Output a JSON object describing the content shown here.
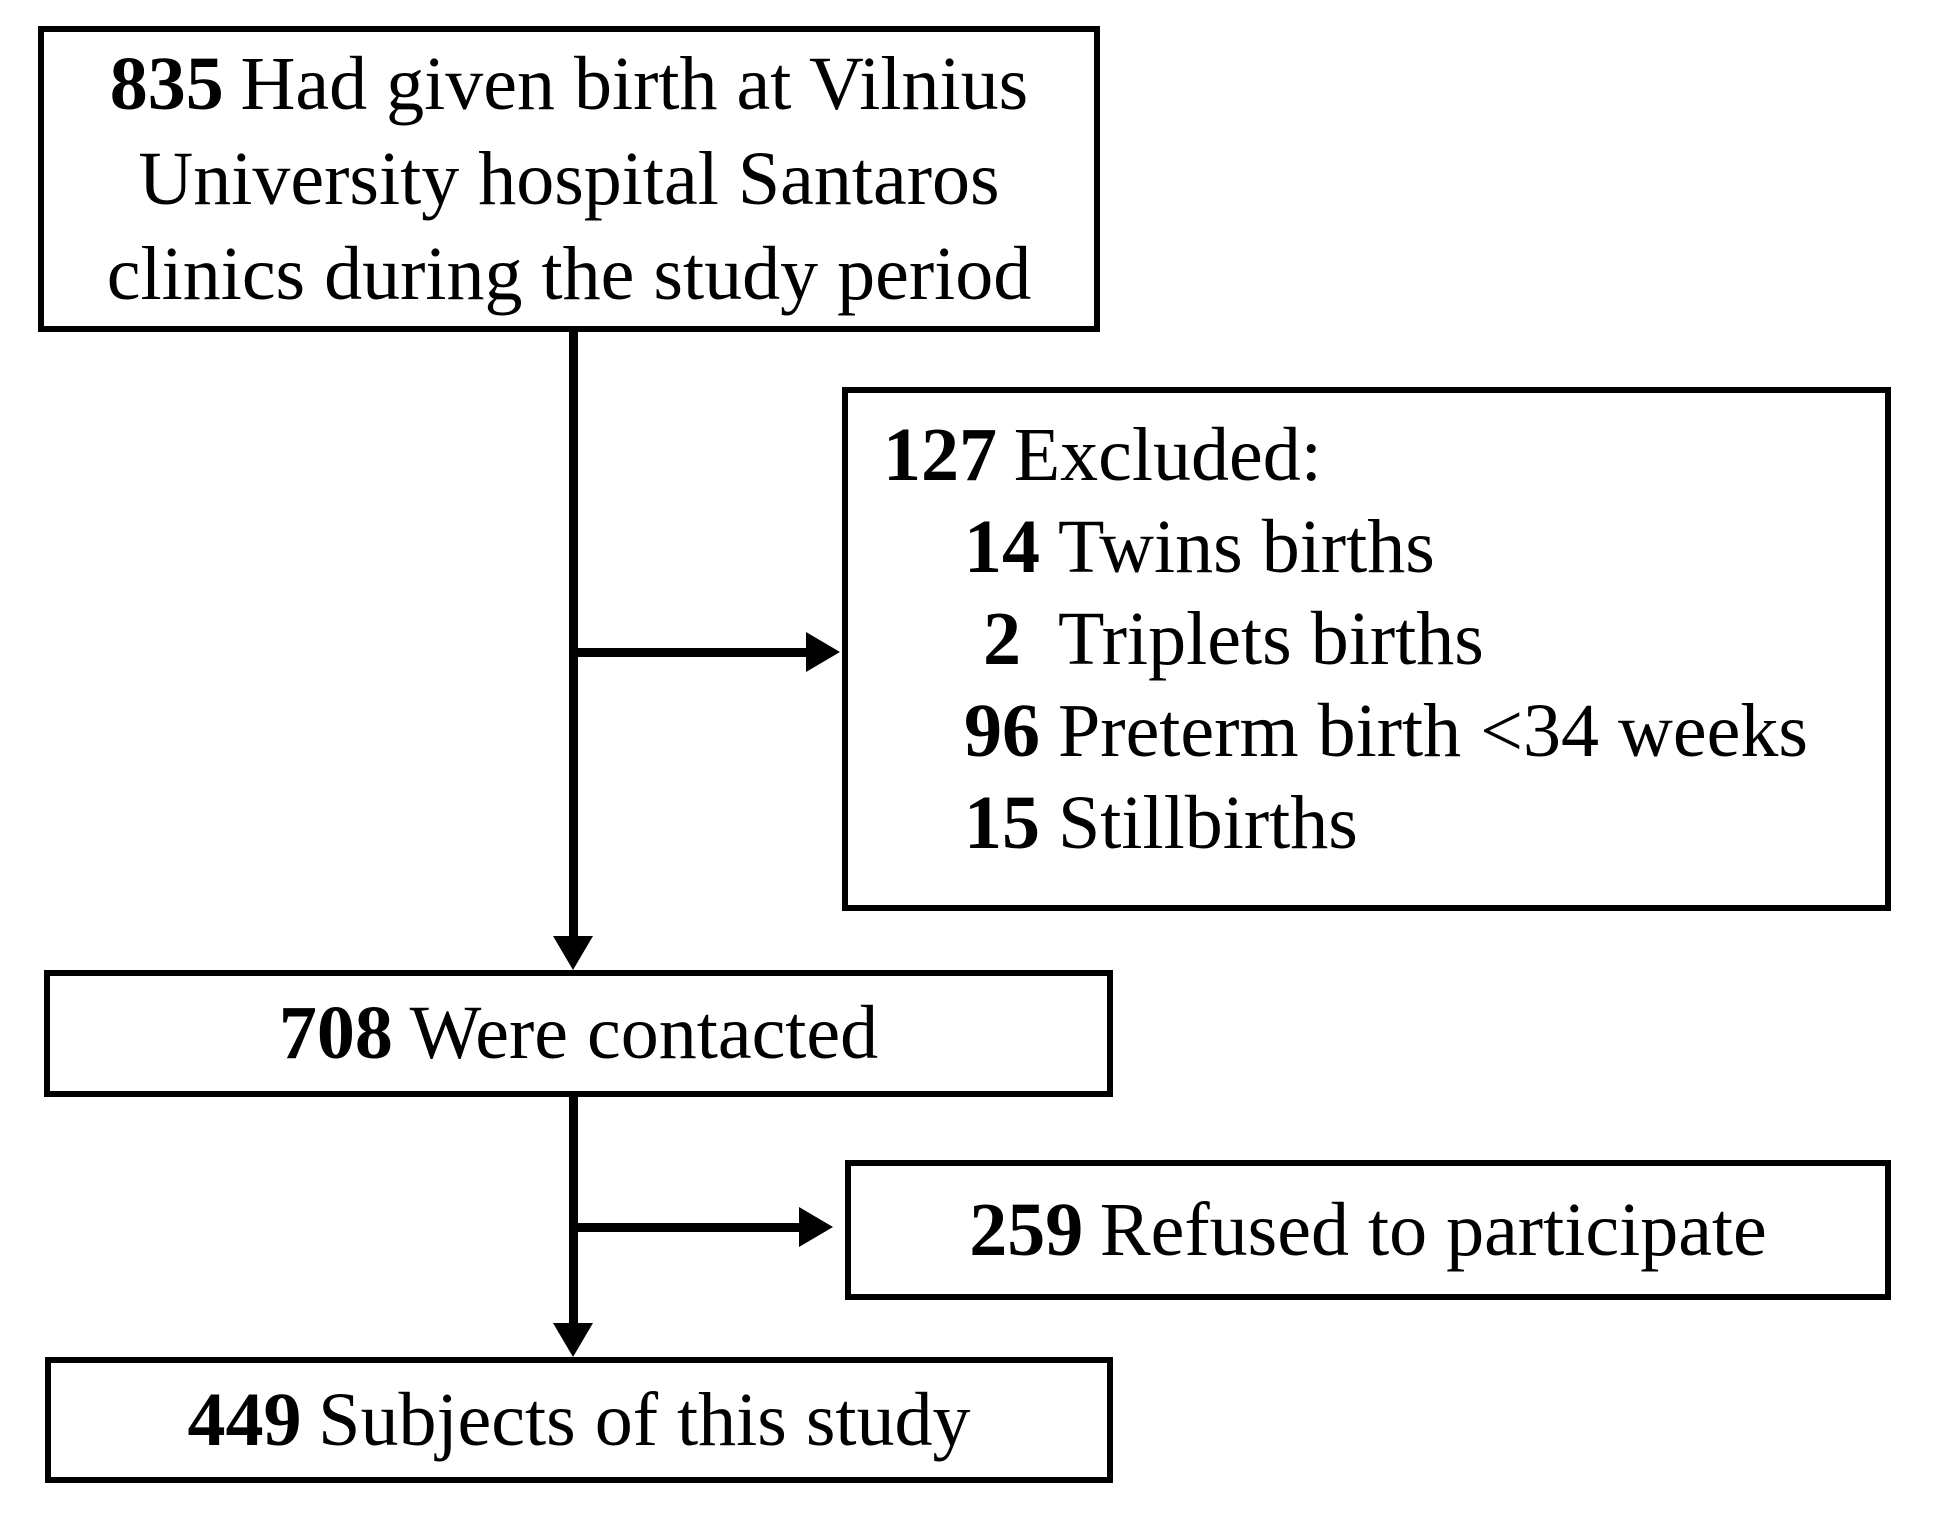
{
  "flow": {
    "recruited": {
      "count": "835",
      "line1": "Had given birth at Vilnius",
      "line2": "University hospital Santaros",
      "line3": "clinics during the study period"
    },
    "excluded": {
      "count": "127",
      "label": "Excluded:",
      "items": [
        {
          "count": "14",
          "label": "Twins births"
        },
        {
          "count": "2",
          "label": "Triplets births"
        },
        {
          "count": "96",
          "label": "Preterm birth <34 weeks"
        },
        {
          "count": "15",
          "label": "Stillbirths"
        }
      ]
    },
    "contacted": {
      "count": "708",
      "label": "Were contacted"
    },
    "refused": {
      "count": "259",
      "label": "Refused to participate"
    },
    "subjects": {
      "count": "449",
      "label": "Subjects of this study"
    }
  },
  "colors": {
    "border": "#000000",
    "text": "#000000",
    "background": "#ffffff"
  }
}
